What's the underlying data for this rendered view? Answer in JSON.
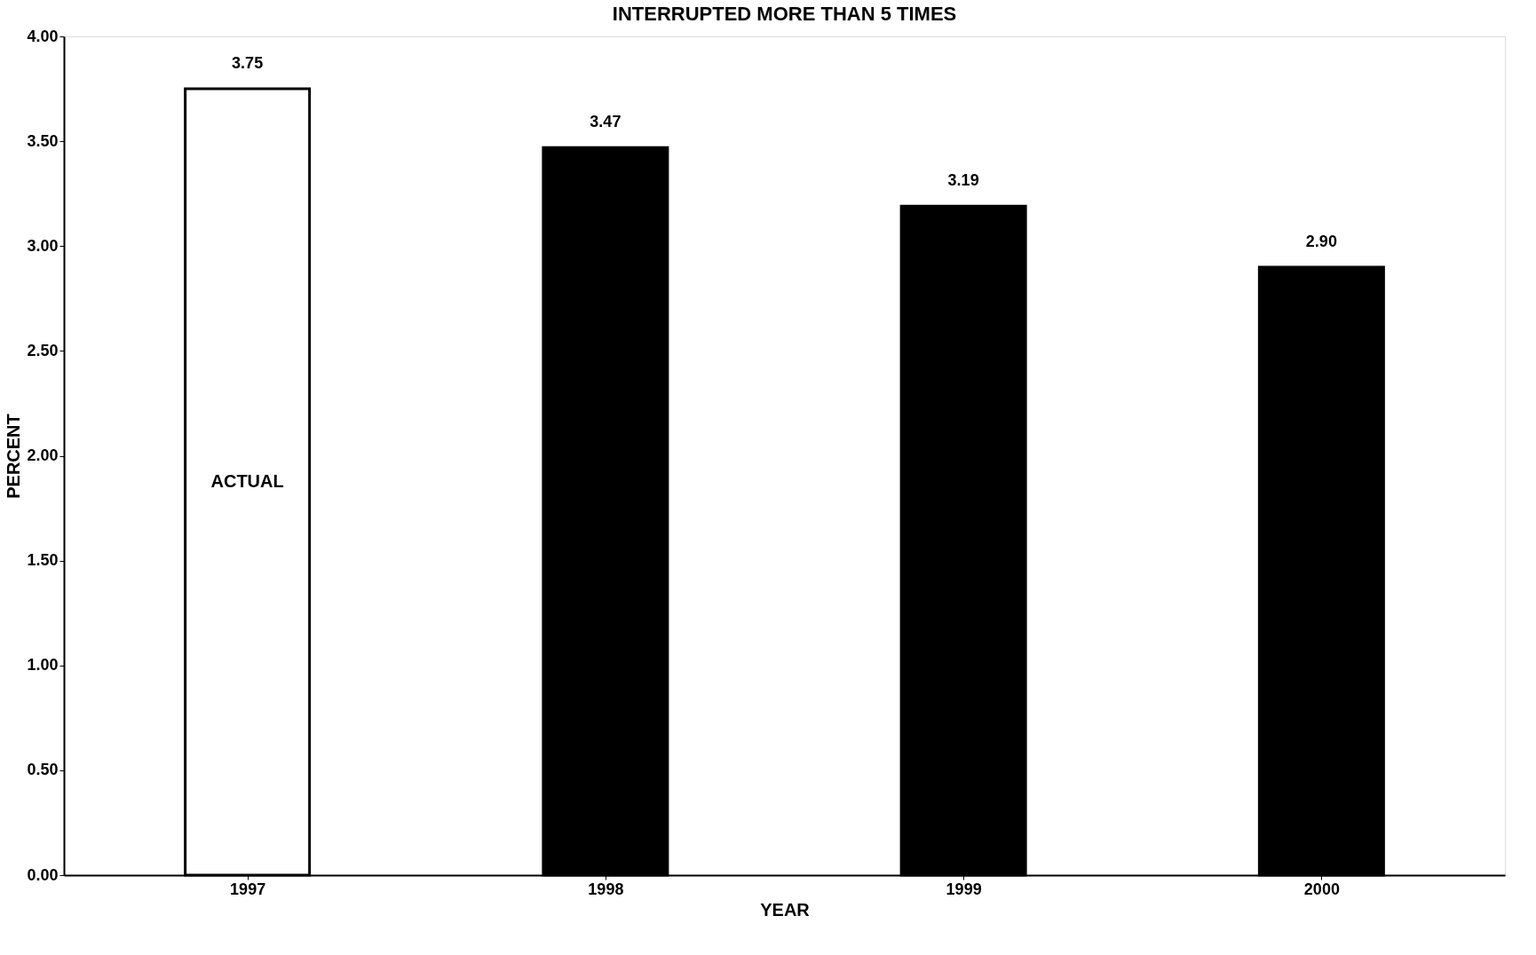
{
  "chart_data": {
    "type": "bar",
    "title": "INTERRUPTED MORE THAN 5 TIMES",
    "xlabel": "YEAR",
    "ylabel": "PERCENT",
    "categories": [
      "1997",
      "1998",
      "1999",
      "2000"
    ],
    "values": [
      3.75,
      3.47,
      3.19,
      2.9
    ],
    "colors": [
      "#ffffff",
      "#000000",
      "#000000",
      "#000000"
    ],
    "value_labels": [
      "3.75",
      "3.47",
      "3.19",
      "2.90"
    ],
    "ylim": [
      0,
      4
    ],
    "yticks": [
      {
        "value": 0,
        "label": "0.00"
      },
      {
        "value": 0.5,
        "label": "0.50"
      },
      {
        "value": 1,
        "label": "1.00"
      },
      {
        "value": 1.5,
        "label": "1.50"
      },
      {
        "value": 2,
        "label": "2.00"
      },
      {
        "value": 2.5,
        "label": "2.50"
      },
      {
        "value": 3,
        "label": "3.00"
      },
      {
        "value": 3.5,
        "label": "3.50"
      },
      {
        "value": 4,
        "label": "4.00"
      }
    ],
    "annotations": [
      "ACTUAL"
    ],
    "grid": false
  }
}
